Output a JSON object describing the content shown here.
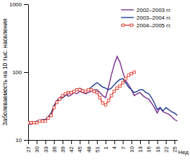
{
  "chart_data": {
    "type": "line",
    "x_label": "Нед",
    "y_label": "Заболеваемость на 10 тыс. населения",
    "log": "y",
    "legend": "upper right",
    "categories": [
      27,
      null,
      null,
      30,
      null,
      null,
      33,
      null,
      null,
      36,
      null,
      null,
      39,
      null,
      null,
      42,
      null,
      null,
      45,
      null,
      null,
      48,
      null,
      null,
      51,
      null,
      null,
      1,
      null,
      null,
      4,
      null,
      null,
      7,
      null,
      null,
      10,
      null,
      null,
      13,
      null,
      null,
      16,
      null,
      null,
      19,
      null,
      null,
      22,
      null,
      null,
      25,
      null
    ],
    "ylim": [
      10,
      1000
    ],
    "yticks": [
      10,
      100,
      1000
    ],
    "series": [
      {
        "name": "2002–2003 гг.",
        "color": "#7b2d8e",
        "marker": "none",
        "values": [
          17,
          17,
          18,
          18,
          19,
          20,
          19,
          21,
          23,
          30,
          38,
          42,
          45,
          48,
          44,
          46,
          50,
          48,
          52,
          50,
          48,
          50,
          52,
          55,
          55,
          50,
          45,
          42,
          60,
          90,
          130,
          170,
          140,
          100,
          75,
          65,
          55,
          45,
          48,
          50,
          45,
          42,
          40,
          35,
          30,
          25,
          30,
          26,
          25,
          24,
          22,
          20,
          19
        ]
      },
      {
        "name": "2003–2004 гг.",
        "color": "#1f3a93",
        "marker": "none",
        "values": [
          18,
          18,
          18,
          19,
          19,
          20,
          20,
          22,
          25,
          32,
          38,
          40,
          42,
          45,
          48,
          50,
          52,
          55,
          58,
          55,
          52,
          55,
          60,
          65,
          70,
          65,
          60,
          58,
          55,
          58,
          65,
          72,
          78,
          80,
          70,
          60,
          55,
          50,
          52,
          55,
          55,
          50,
          48,
          42,
          35,
          28,
          30,
          27,
          30,
          28,
          26,
          25,
          23
        ]
      },
      {
        "name": "2004–2005 гг.",
        "color": "#e03c31",
        "marker": "square",
        "values": [
          18,
          18,
          18,
          18,
          19,
          19,
          19,
          21,
          23,
          30,
          36,
          40,
          45,
          48,
          50,
          50,
          52,
          55,
          55,
          53,
          52,
          55,
          55,
          52,
          50,
          42,
          35,
          33,
          38,
          45,
          52,
          58,
          62,
          70,
          80,
          90,
          95,
          100,
          null,
          null,
          null,
          null,
          null,
          null,
          null,
          null,
          null,
          null,
          null,
          null,
          null,
          null,
          null
        ]
      }
    ]
  }
}
